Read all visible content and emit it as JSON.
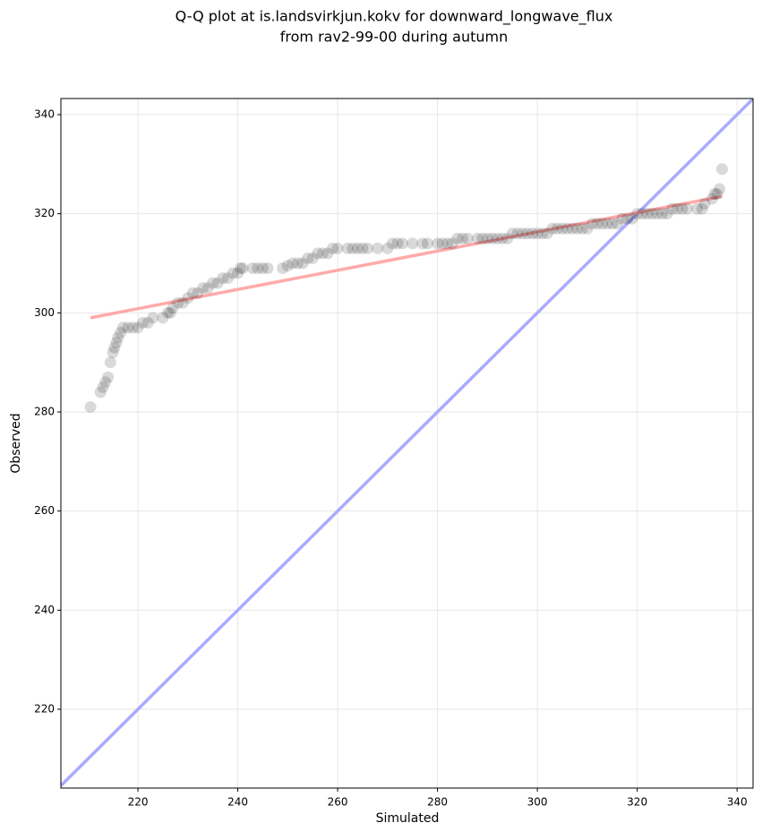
{
  "chart_data": {
    "type": "scatter",
    "title": [
      "Q-Q plot at is.landsvirkjun.kokv for downward_longwave_flux",
      "from rav2-99-00 during autumn"
    ],
    "x_label": "Simulated",
    "y_label": "Observed",
    "color": "#000000",
    "x": [
      210.5,
      212.5,
      213,
      213.5,
      214,
      214.5,
      215,
      215.3,
      215.7,
      216,
      216.5,
      217,
      218,
      219,
      220,
      221,
      222,
      223,
      225,
      226,
      226.5,
      227,
      228,
      229,
      230,
      231,
      232,
      233,
      234,
      235,
      236,
      237,
      238,
      239,
      240,
      240.5,
      241,
      243,
      244,
      245,
      246,
      249,
      250,
      251,
      252,
      253,
      254,
      255,
      256,
      257,
      258,
      259,
      260,
      262,
      263,
      264,
      265,
      266,
      268,
      270,
      271,
      272,
      273,
      275,
      277,
      278,
      280,
      281,
      282,
      283,
      284,
      285,
      286,
      288,
      289,
      290,
      291,
      292,
      293,
      294,
      295,
      296,
      297,
      298,
      299,
      300,
      301,
      302,
      303,
      304,
      305,
      306,
      307,
      308,
      309,
      310,
      311,
      312,
      313,
      314,
      315,
      316,
      317,
      318,
      319,
      320,
      321,
      322,
      323,
      324,
      325,
      326,
      327,
      328,
      329,
      330,
      332,
      333,
      333.5,
      335,
      335.5,
      336,
      336.5,
      337
    ],
    "values": [
      281,
      284,
      285,
      286,
      287,
      290,
      292,
      293,
      294,
      295,
      296,
      297,
      297,
      297,
      297,
      298,
      298,
      299,
      299,
      300,
      300,
      301,
      302,
      302,
      303,
      304,
      304,
      305,
      305,
      306,
      306,
      307,
      307,
      308,
      308,
      309,
      309,
      309,
      309,
      309,
      309,
      309,
      309.5,
      310,
      310,
      310,
      311,
      311,
      312,
      312,
      312,
      313,
      313,
      313,
      313,
      313,
      313,
      313,
      313,
      313,
      314,
      314,
      314,
      314,
      314,
      314,
      314,
      314,
      314,
      314,
      315,
      315,
      315,
      315,
      315,
      315,
      315,
      315,
      315,
      315,
      316,
      316,
      316,
      316,
      316,
      316,
      316,
      316,
      317,
      317,
      317,
      317,
      317,
      317,
      317,
      317,
      318,
      318,
      318,
      318,
      318,
      318,
      319,
      319,
      319,
      320,
      320,
      320,
      320,
      320,
      320,
      320,
      321,
      321,
      321,
      321,
      321,
      321,
      322,
      323,
      324,
      324,
      325,
      329
    ],
    "reference_lines": [
      {
        "color": "#aaaaff",
        "x": [
          204.57,
          343.2
        ],
        "y": [
          204.57,
          343.2
        ]
      },
      {
        "color": "#ffaaaa",
        "x": [
          210.5,
          337
        ],
        "y": [
          299,
          323.5
        ]
      }
    ],
    "xlim": [
      204.57,
      343.2
    ],
    "ylim": [
      204.1,
      343.25
    ],
    "xticks": [
      220,
      240,
      260,
      280,
      300,
      320,
      340
    ],
    "yticks": [
      220,
      240,
      260,
      280,
      300,
      320,
      340
    ],
    "grid": true
  }
}
